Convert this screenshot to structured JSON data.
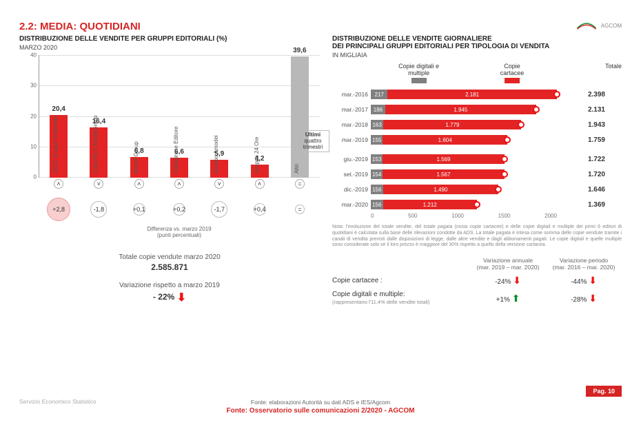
{
  "title": "2.2: MEDIA: QUOTIDIANI",
  "logo_text": "AGCOM",
  "left": {
    "subtitle": "DISTRIBUZIONE DELLE VENDITE PER GRUPPI EDITORIALI (%)",
    "date": "MARZO 2020",
    "ylim": [
      0,
      40
    ],
    "ytick_step": 10,
    "bar_color": "#e42424",
    "altri_color": "#b8b8b8",
    "categories": [
      "GEDI Gruppo Editoriale",
      "Cairo/RCS MediaGroup",
      "Monrif Group",
      "Caltagirone Editore",
      "Gruppo Amodei",
      "Gruppo 24 Ore",
      "Altri"
    ],
    "values": [
      20.4,
      16.4,
      6.8,
      6.6,
      5.9,
      4.2,
      39.6
    ],
    "arrows": [
      "up",
      "down",
      "up",
      "up",
      "down",
      "up",
      "eq"
    ],
    "diffs": [
      "+2,8",
      "-1,8",
      "+0,1",
      "+0,2",
      "-1,7",
      "+0,4",
      "="
    ],
    "diff_highlight": [
      true,
      false,
      false,
      false,
      false,
      false,
      false
    ],
    "diff_size": [
      34,
      24,
      18,
      18,
      24,
      18,
      14
    ],
    "diff_label": "Differenza vs. marzo 2019",
    "diff_unit": "(punti percentuali)",
    "summary": {
      "row1_label": "Totale copie vendute marzo 2020",
      "row1_value": "2.585.871",
      "row2_label": "Variazione rispetto a marzo 2019",
      "row2_value": "- 22%"
    }
  },
  "right": {
    "subtitle1": "DISTRIBUZIONE DELLE VENDITE GIORNALIERE",
    "subtitle2": "DEI PRINCIPALI GRUPPI EDITORIALI PER TIPOLOGIA DI VENDITA",
    "unit": "IN MIGLIAIA",
    "legend": {
      "digital": "Copie digitali e multiple",
      "print": "Copie cartacee",
      "total": "Totale"
    },
    "digital_color": "#808080",
    "print_color": "#e42424",
    "xmax": 2400,
    "xticks": [
      0,
      500,
      1000,
      1500,
      2000
    ],
    "rows": [
      {
        "label": "mar.-2016",
        "digital": 217,
        "print": 2181,
        "total": "2.398"
      },
      {
        "label": "mar.-2017",
        "digital": 186,
        "print": 1945,
        "total": "2.131"
      },
      {
        "label": "mar.-2018",
        "digital": 163,
        "print": 1779,
        "total": "1.943"
      },
      {
        "label": "mar.-2019",
        "digital": 155,
        "print": 1604,
        "total": "1.759"
      },
      {
        "label": "giu.-2019",
        "digital": 153,
        "print": 1569,
        "total": "1.722"
      },
      {
        "label": "set.-2019",
        "digital": 154,
        "print": 1567,
        "total": "1.720"
      },
      {
        "label": "dic.-2019",
        "digital": 156,
        "print": 1490,
        "total": "1.646"
      },
      {
        "label": "mar.-2020",
        "digital": 156,
        "print": 1212,
        "total": "1.369"
      }
    ],
    "sidebox": "Ultimi quattro trimestri",
    "note": "Nota: l'evoluzione del totale vendite, del totale pagata (ossia copie cartacee) e delle copie digitali e multiple dei primi 6 editori di quotidiani è calcolata sulla base delle rilevazioni condotte da ADS. La totale pagata è intesa come somma delle copie vendute tramite i canali di vendita previsti dalle disposizioni di legge, dalle altre vendite e dagli abbonamenti pagati. Le copie digitali e quelle multiple sono considerate solo se il loro prezzo è maggiore del 30% rispetto a quello della versione cartacea.",
    "varhead": {
      "c2a": "Variazione annuale",
      "c2b": "(mar. 2019 – mar. 2020)",
      "c3a": "Variazione periodo",
      "c3b": "(mar. 2016 – mar. 2020)"
    },
    "varrows": [
      {
        "label": "Copie cartacee :",
        "sub": "",
        "v1": "-24%",
        "d1": "down",
        "v2": "-44%",
        "d2": "down"
      },
      {
        "label": "Copie digitali e multiple:",
        "sub": "(rappresentano l'11,4% delle vendite totali)",
        "v1": "+1%",
        "d1": "up",
        "v2": "-28%",
        "d2": "down"
      }
    ]
  },
  "footer": {
    "fonte1": "Fonte: elaborazioni Autorità su dati ADS e IES/Agcom",
    "fonte2": "Fonte: Osservatorio sulle comunicazioni 2/2020 - AGCOM",
    "service": "Servizio Economico Statistico",
    "page": "Pag. 10"
  }
}
